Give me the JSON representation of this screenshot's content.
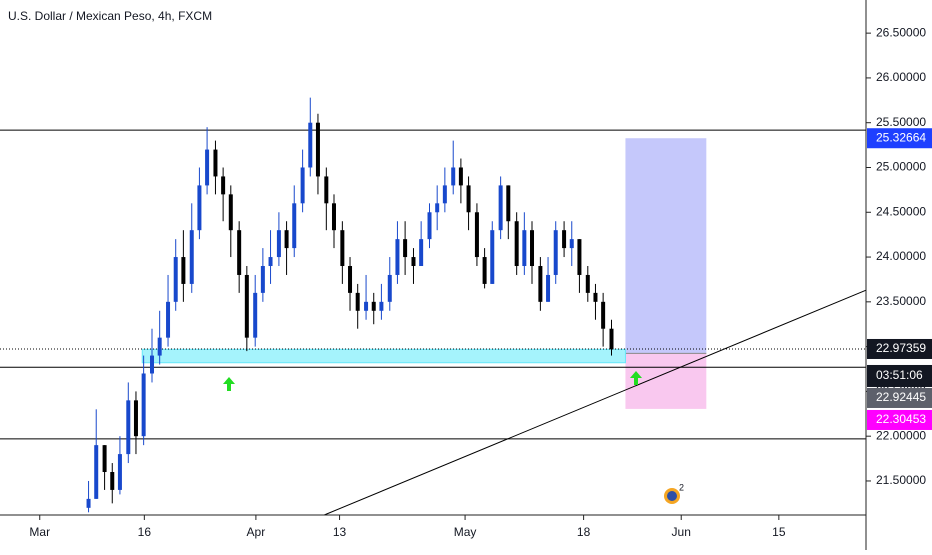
{
  "chart_data": {
    "type": "candlestick",
    "title": "U.S. Dollar / Mexican Peso, 4h, FXCM",
    "up_color": "#1848cc",
    "down_color": "#000000",
    "xlim": [
      -4.7,
      119.5
    ],
    "ylim": [
      21.12,
      26.87
    ],
    "grid": false,
    "xticks": [
      {
        "value": 1,
        "label": "Mar"
      },
      16,
      {
        "value": 32,
        "label": "Apr"
      },
      {
        "value": 44,
        "label": "13"
      },
      {
        "value": 62,
        "label": "May"
      },
      {
        "value": 79,
        "label": "18"
      },
      {
        "value": 93,
        "label": "Jun"
      },
      {
        "value": 107,
        "label": "15"
      }
    ],
    "yticks": [
      {
        "value": 21.5,
        "label": "21.50000"
      },
      {
        "value": 22,
        "label": "22.00000"
      },
      {
        "value": 22.5,
        "label": "22.50000"
      },
      {
        "value": 23,
        "label": "23.00000"
      },
      {
        "value": 23.5,
        "label": "23.50000"
      },
      {
        "value": 24,
        "label": "24.00000"
      },
      {
        "value": 24.5,
        "label": "24.50000"
      },
      {
        "value": 25,
        "label": "25.00000"
      },
      {
        "value": 25.5,
        "label": "25.50000"
      },
      {
        "value": 26,
        "label": "26.00000"
      },
      {
        "value": 26.5,
        "label": "26.50000"
      }
    ],
    "x": [
      8,
      9.1,
      10.3,
      11.4,
      12.5,
      13.7,
      14.8,
      15.9,
      17.1,
      18.2,
      19.4,
      20.5,
      21.6,
      22.8,
      23.9,
      25,
      26.2,
      27.3,
      28.4,
      29.6,
      30.7,
      31.9,
      33,
      34.1,
      35.3,
      36.4,
      37.5,
      38.7,
      39.8,
      40.9,
      42.1,
      43.2,
      44.4,
      45.5,
      46.6,
      47.8,
      48.9,
      50,
      51.2,
      52.3,
      53.4,
      54.6,
      55.7,
      56.9,
      58,
      59.1,
      60.3,
      61.4,
      62.5,
      63.7,
      64.8,
      65.9,
      67.1,
      68.2,
      69.4,
      70.5,
      71.6,
      72.8,
      73.9,
      75,
      76.2,
      77.3,
      78.4,
      79.6,
      80.7,
      81.8,
      83
    ],
    "open": [
      21.2,
      21.3,
      21.9,
      21.6,
      21.4,
      21.8,
      22.4,
      22.0,
      22.7,
      22.9,
      23.1,
      23.5,
      24.0,
      23.7,
      24.3,
      24.8,
      25.2,
      24.9,
      24.7,
      24.3,
      23.8,
      23.1,
      23.6,
      23.9,
      24.0,
      24.3,
      24.1,
      24.6,
      25.0,
      25.5,
      24.9,
      24.6,
      24.3,
      23.9,
      23.6,
      23.4,
      23.5,
      23.4,
      23.5,
      23.8,
      24.2,
      24.0,
      23.9,
      24.2,
      24.5,
      24.6,
      24.8,
      25.0,
      24.8,
      24.5,
      24.0,
      23.7,
      24.3,
      24.8,
      24.4,
      23.9,
      24.3,
      23.9,
      23.5,
      23.8,
      24.3,
      24.1,
      24.2,
      23.8,
      23.6,
      23.5,
      23.2
    ],
    "high": [
      21.5,
      22.3,
      21.9,
      21.7,
      22.0,
      22.6,
      22.5,
      22.9,
      23.2,
      23.4,
      23.8,
      24.2,
      24.3,
      24.6,
      25.0,
      25.45,
      25.3,
      25.0,
      24.8,
      24.4,
      23.9,
      23.8,
      24.1,
      24.3,
      24.5,
      24.4,
      24.8,
      25.2,
      25.78,
      25.6,
      25.0,
      24.7,
      24.4,
      24.0,
      23.7,
      23.8,
      23.6,
      23.7,
      24.0,
      24.4,
      24.4,
      24.1,
      24.4,
      24.6,
      24.8,
      25.0,
      25.3,
      25.1,
      24.9,
      24.6,
      24.1,
      24.4,
      24.9,
      24.8,
      24.5,
      24.5,
      24.4,
      24.0,
      24.0,
      24.4,
      24.4,
      24.4,
      24.2,
      23.9,
      23.7,
      23.6,
      23.3
    ],
    "low": [
      21.15,
      21.3,
      21.4,
      21.25,
      21.35,
      21.7,
      21.8,
      21.9,
      22.6,
      22.8,
      23.0,
      23.4,
      23.5,
      23.6,
      24.2,
      24.7,
      24.7,
      24.4,
      24.0,
      23.6,
      22.95,
      23.0,
      23.5,
      23.7,
      23.9,
      23.8,
      24.0,
      24.5,
      24.9,
      24.7,
      24.3,
      24.1,
      23.7,
      23.4,
      23.2,
      23.3,
      23.25,
      23.3,
      23.4,
      23.7,
      23.8,
      23.7,
      23.9,
      24.1,
      24.3,
      24.5,
      24.7,
      24.6,
      24.3,
      23.9,
      23.65,
      23.7,
      24.2,
      24.2,
      23.8,
      23.8,
      23.7,
      23.4,
      23.5,
      23.7,
      24.0,
      23.9,
      23.6,
      23.5,
      23.3,
      23.0,
      22.9
    ],
    "close": [
      21.3,
      21.9,
      21.6,
      21.4,
      21.8,
      22.4,
      22.0,
      22.7,
      22.9,
      23.1,
      23.5,
      24.0,
      23.7,
      24.3,
      24.8,
      25.2,
      24.9,
      24.7,
      24.3,
      23.8,
      23.1,
      23.6,
      23.9,
      24.0,
      24.3,
      24.1,
      24.6,
      25.0,
      25.5,
      24.9,
      24.6,
      24.3,
      23.9,
      23.6,
      23.4,
      23.5,
      23.4,
      23.5,
      23.8,
      24.2,
      24.0,
      23.9,
      24.2,
      24.5,
      24.6,
      24.8,
      25.0,
      24.8,
      24.5,
      24.0,
      23.7,
      24.3,
      24.8,
      24.4,
      23.9,
      24.3,
      23.9,
      23.5,
      23.8,
      24.3,
      24.1,
      24.2,
      23.8,
      23.6,
      23.5,
      23.2,
      22.97
    ],
    "horizontal_lines": [
      25.417,
      22.77,
      21.97
    ],
    "support_zone": {
      "x": [
        15.7,
        85
      ],
      "y": [
        22.82,
        22.97
      ],
      "color": "#a5f3fc"
    },
    "trendline": {
      "x": [
        41.8,
        119.5
      ],
      "y": [
        21.12,
        23.63
      ]
    },
    "position": {
      "x": [
        85,
        96.6
      ],
      "target": 25.32664,
      "entry": 22.92445,
      "stop": 22.30453,
      "profit_color": "#c5c8fb",
      "loss_color": "#f9c8ef"
    },
    "last_price": 22.97359,
    "countdown": "03:51:06",
    "price_labels": [
      {
        "value": 25.32664,
        "color": "#1e40ff"
      },
      {
        "value": 22.97359,
        "color": "#131722"
      },
      {
        "value": 22.92445,
        "color": "#5d606b"
      },
      {
        "value": 22.30453,
        "color": "#ff00ff"
      }
    ],
    "events_badge": "2"
  }
}
